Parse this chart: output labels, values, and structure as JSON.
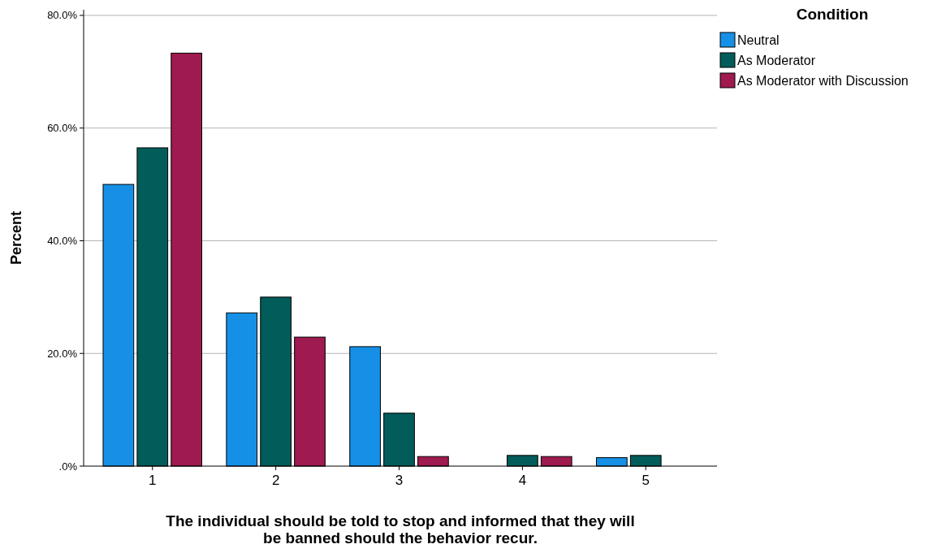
{
  "chart_data": {
    "type": "bar",
    "xlabel": "The individual should be told to stop and informed that they will be banned should the behavior recur.",
    "ylabel": "Percent",
    "legend_title": "Condition",
    "legend": "top right",
    "grid": "y",
    "categories": [
      "1",
      "2",
      "3",
      "4",
      "5"
    ],
    "series": [
      {
        "name": "Neutral",
        "color": "#1590e6",
        "values": [
          50.0,
          27.2,
          21.2,
          0,
          1.5
        ]
      },
      {
        "name": "As Moderator",
        "color": "#025c59",
        "values": [
          56.5,
          30.0,
          9.4,
          1.9,
          1.9
        ]
      },
      {
        "name": "As Moderator with Discussion",
        "color": "#9e1a4f",
        "values": [
          73.3,
          22.9,
          1.7,
          1.7,
          0
        ]
      }
    ],
    "ylim": [
      0,
      81
    ],
    "yticks": [
      {
        "value": 0,
        "label": ".0%"
      },
      {
        "value": 20,
        "label": "20.0%"
      },
      {
        "value": 40,
        "label": "40.0%"
      },
      {
        "value": 60,
        "label": "60.0%"
      },
      {
        "value": 80,
        "label": "80.0%"
      }
    ]
  }
}
